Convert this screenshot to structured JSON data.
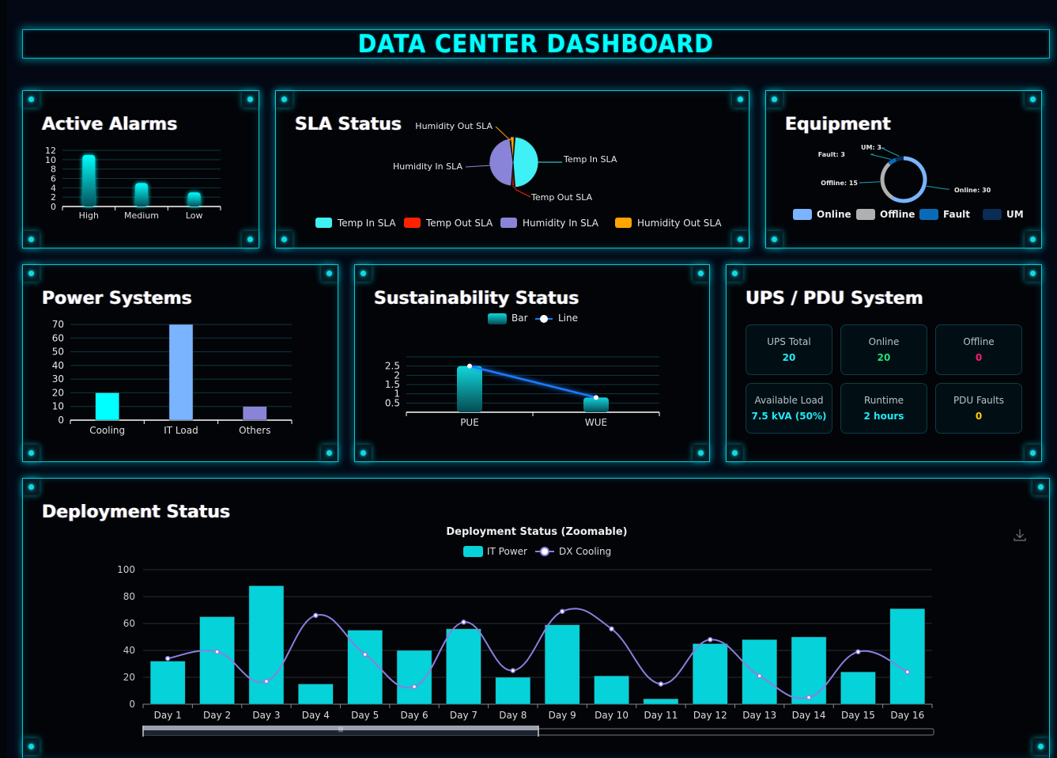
{
  "header": {
    "title": "DATA CENTER DASHBOARD"
  },
  "colors": {
    "accent": "#00ffff",
    "panel_border": "#0fc3d0",
    "ups_total": "#22e8f5",
    "ups_online": "#22e07a",
    "ups_offline": "#ff1a6b",
    "ups_load": "#22e8f5",
    "ups_runtime": "#22e8f5",
    "ups_pdu_faults": "#ffcc00"
  },
  "panels": {
    "active_alarms": {
      "title": "Active Alarms"
    },
    "sla_status": {
      "title": "SLA Status"
    },
    "equipment": {
      "title": "Equipment"
    },
    "power_systems": {
      "title": "Power Systems"
    },
    "sustainability": {
      "title": "Sustainability Status"
    },
    "ups_pdu": {
      "title": "UPS / PDU System",
      "cards": [
        {
          "label": "UPS Total",
          "value": "20",
          "color": "#22e8f5"
        },
        {
          "label": "Online",
          "value": "20",
          "color": "#22e07a"
        },
        {
          "label": "Offline",
          "value": "0",
          "color": "#ff1a6b"
        },
        {
          "label": "Available Load",
          "value": "7.5 kVA (50%)",
          "color": "#22e8f5"
        },
        {
          "label": "Runtime",
          "value": "2 hours",
          "color": "#22e8f5"
        },
        {
          "label": "PDU Faults",
          "value": "0",
          "color": "#ffcc00"
        }
      ]
    },
    "deployment": {
      "title": "Deployment Status",
      "download_icon": "download-icon"
    }
  },
  "chart_data": [
    {
      "id": "alarms",
      "type": "bar",
      "title": "Active Alarms",
      "categories": [
        "High",
        "Medium",
        "Low"
      ],
      "values": [
        11,
        5,
        3
      ],
      "ylim": [
        0,
        12
      ],
      "yticks": [
        0,
        2,
        4,
        6,
        8,
        10,
        12
      ],
      "grid": true
    },
    {
      "id": "sla",
      "type": "pie",
      "title": "SLA Status",
      "labels": [
        "Temp In SLA",
        "Temp Out SLA",
        "Humidity In SLA",
        "Humidity Out SLA"
      ],
      "values": [
        48,
        2,
        47,
        3
      ],
      "colors": [
        "#3ff0f5",
        "#ff2200",
        "#8a84d8",
        "#ffa500"
      ],
      "legend": "bottom"
    },
    {
      "id": "equipment",
      "type": "pie",
      "title": "Equipment",
      "labels": [
        "Online",
        "Offline",
        "Fault",
        "UM"
      ],
      "values": [
        30,
        15,
        3,
        3
      ],
      "data_labels": [
        "Online: 30",
        "Offline: 15",
        "Fault: 3",
        "UM: 3"
      ],
      "colors": [
        "#7ab4ff",
        "#b0b0b0",
        "#0a6ab8",
        "#0a2c55"
      ],
      "donut": true,
      "legend": "bottom"
    },
    {
      "id": "power",
      "type": "bar",
      "title": "Power Systems",
      "categories": [
        "Cooling",
        "IT Load",
        "Others"
      ],
      "values": [
        20,
        70,
        10
      ],
      "colors": [
        "#00ffff",
        "#7ab4ff",
        "#8a84d8"
      ],
      "ylim": [
        0,
        70
      ],
      "yticks": [
        0,
        10,
        20,
        30,
        40,
        50,
        60,
        70
      ],
      "grid": true
    },
    {
      "id": "sustain",
      "type": "bar",
      "title": "Sustainability Status",
      "categories": [
        "PUE",
        "WUE"
      ],
      "series": [
        {
          "name": "Bar",
          "type": "bar",
          "values": [
            2.5,
            0.8
          ]
        },
        {
          "name": "Line",
          "type": "line",
          "values": [
            2.5,
            0.8
          ]
        }
      ],
      "ylim": [
        0,
        3
      ],
      "yticks": [
        0.5,
        1,
        1.5,
        2,
        2.5
      ],
      "legend": "top",
      "grid": true
    },
    {
      "id": "deploy",
      "type": "bar",
      "title": "Deployment Status (Zoomable)",
      "categories": [
        "Day 1",
        "Day 2",
        "Day 3",
        "Day 4",
        "Day 5",
        "Day 6",
        "Day 7",
        "Day 8",
        "Day 9",
        "Day 10",
        "Day 11",
        "Day 12",
        "Day 13",
        "Day 14",
        "Day 15",
        "Day 16"
      ],
      "series": [
        {
          "name": "IT Power",
          "type": "bar",
          "color": "#06d2da",
          "values": [
            32,
            65,
            88,
            15,
            55,
            40,
            56,
            20,
            59,
            21,
            4,
            45,
            48,
            50,
            24,
            71
          ]
        },
        {
          "name": "DX Cooling",
          "type": "line",
          "color": "#8a7fdc",
          "values": [
            34,
            39,
            17,
            66,
            37,
            13,
            61,
            25,
            69,
            56,
            15,
            48,
            21,
            5,
            39,
            24
          ]
        }
      ],
      "ylim": [
        0,
        100
      ],
      "yticks": [
        0,
        20,
        40,
        60,
        80,
        100
      ],
      "legend": "top",
      "grid": true,
      "zoom_range_percent": [
        0,
        50
      ]
    }
  ]
}
